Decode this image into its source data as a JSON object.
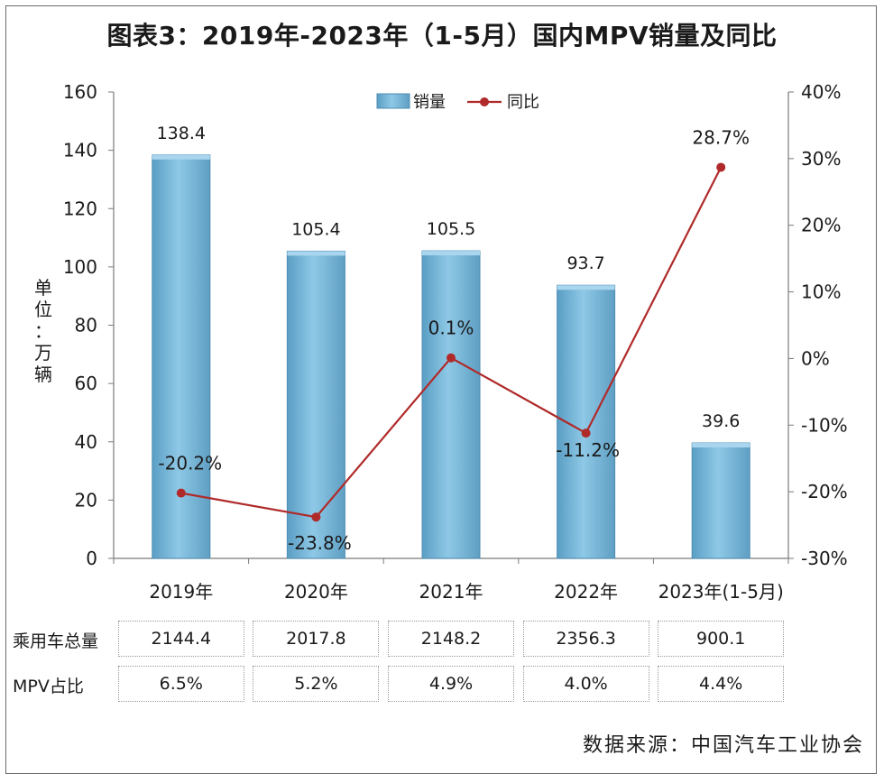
{
  "title": "图表3：2019年-2023年（1-5月）国内MPV销量及同比",
  "source": "数据来源：中国汽车工业协会",
  "chart_data": {
    "type": "bar",
    "categories": [
      "2019年",
      "2020年",
      "2021年",
      "2022年",
      "2023年(1-5月)"
    ],
    "series": [
      {
        "name": "销量",
        "type": "bar",
        "axis": "left",
        "values": [
          138.4,
          105.4,
          105.5,
          93.7,
          39.6
        ],
        "labels": [
          "138.4",
          "105.4",
          "105.5",
          "93.7",
          "39.6"
        ],
        "color": "#7bb8d9"
      },
      {
        "name": "同比",
        "type": "line",
        "axis": "right",
        "values": [
          -20.2,
          -23.8,
          0.1,
          -11.2,
          28.7
        ],
        "labels": [
          "-20.2%",
          "-23.8%",
          "0.1%",
          "-11.2%",
          "28.7%"
        ],
        "color": "#b02a2a"
      }
    ],
    "ylabel": "单位：万辆",
    "ylim": [
      0,
      160
    ],
    "yticks": [
      "0",
      "20",
      "40",
      "60",
      "80",
      "100",
      "120",
      "140",
      "160"
    ],
    "y2lim": [
      -30,
      40
    ],
    "y2ticks": [
      "-30%",
      "-20%",
      "-10%",
      "0%",
      "10%",
      "20%",
      "30%",
      "40%"
    ],
    "legend_position": "top-center",
    "grid": false
  },
  "table": {
    "rows": [
      {
        "label": "乘用车总量",
        "values": [
          "2144.4",
          "2017.8",
          "2148.2",
          "2356.3",
          "900.1"
        ]
      },
      {
        "label": "MPV占比",
        "values": [
          "6.5%",
          "5.2%",
          "4.9%",
          "4.0%",
          "4.4%"
        ]
      }
    ]
  }
}
